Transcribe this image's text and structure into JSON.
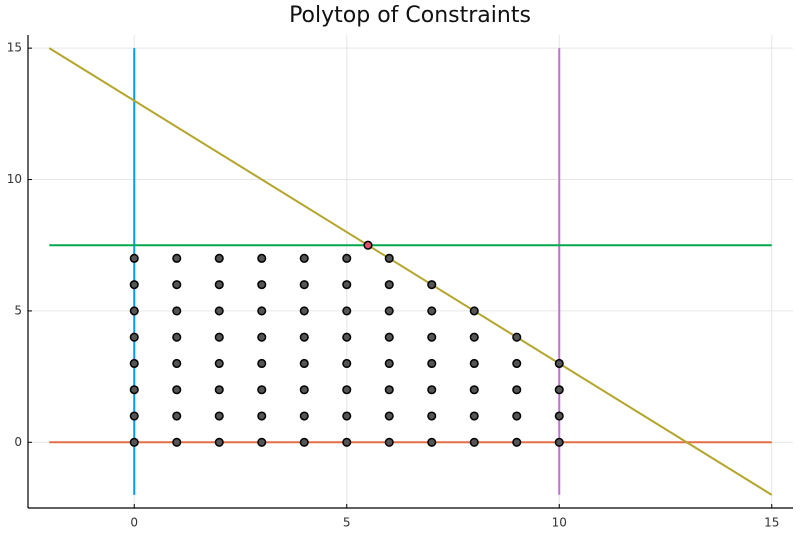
{
  "chart_data": {
    "type": "line",
    "title": "Polytop of Constraints",
    "xlim": [
      -2.5,
      15.5
    ],
    "ylim": [
      -2.5,
      15.5
    ],
    "xticks": [
      0,
      5,
      10,
      15
    ],
    "yticks": [
      0,
      5,
      10,
      15
    ],
    "grid": true,
    "series": [
      {
        "color": "#009af9",
        "x": [
          0,
          0
        ],
        "values": [
          -2,
          15
        ]
      },
      {
        "color": "#e26f46",
        "x": [
          -2,
          15
        ],
        "values": [
          0,
          0
        ]
      },
      {
        "color": "#c271d2",
        "x": [
          10,
          10
        ],
        "values": [
          -2,
          15
        ]
      },
      {
        "color": "#00a94e",
        "x": [
          -2,
          15
        ],
        "values": [
          7.5,
          7.5
        ]
      },
      {
        "color": "#b4a52c",
        "x": [
          -2,
          15
        ],
        "values": [
          15,
          -2
        ]
      },
      {
        "type": "scatter",
        "color": "#555555",
        "x": [
          0,
          0,
          0,
          0,
          0,
          0,
          0,
          0,
          1,
          1,
          1,
          1,
          1,
          1,
          1,
          1,
          2,
          2,
          2,
          2,
          2,
          2,
          2,
          2,
          3,
          3,
          3,
          3,
          3,
          3,
          3,
          3,
          4,
          4,
          4,
          4,
          4,
          4,
          4,
          4,
          5,
          5,
          5,
          5,
          5,
          5,
          5,
          5,
          6,
          6,
          6,
          6,
          6,
          6,
          6,
          6,
          7,
          7,
          7,
          7,
          7,
          7,
          7,
          8,
          8,
          8,
          8,
          8,
          8,
          9,
          9,
          9,
          9,
          9,
          10,
          10,
          10,
          10
        ],
        "values": [
          0,
          1,
          2,
          3,
          4,
          5,
          6,
          7,
          0,
          1,
          2,
          3,
          4,
          5,
          6,
          7,
          0,
          1,
          2,
          3,
          4,
          5,
          6,
          7,
          0,
          1,
          2,
          3,
          4,
          5,
          6,
          7,
          0,
          1,
          2,
          3,
          4,
          5,
          6,
          7,
          0,
          1,
          2,
          3,
          4,
          5,
          6,
          7,
          0,
          1,
          2,
          3,
          4,
          5,
          6,
          7,
          0,
          1,
          2,
          3,
          4,
          5,
          6,
          0,
          1,
          2,
          3,
          4,
          5,
          0,
          1,
          2,
          3,
          4,
          0,
          1,
          2,
          3
        ]
      },
      {
        "type": "scatter",
        "color": "#e0506a",
        "x": [
          5.5
        ],
        "values": [
          7.5
        ]
      }
    ]
  }
}
